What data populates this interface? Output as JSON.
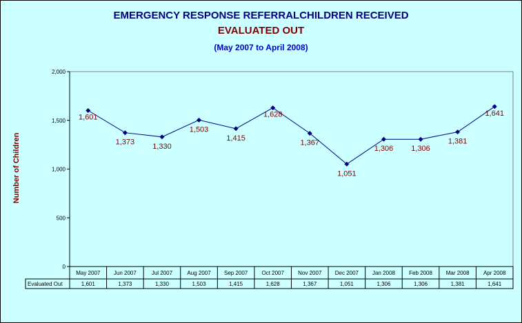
{
  "title_line1": "EMERGENCY RESPONSE REFERRALCHILDREN RECEIVED",
  "title_line2": "EVALUATED OUT",
  "subtitle": "(May 2007 to April 2008)",
  "colors": {
    "background": "#ccffff",
    "line": "#000080",
    "marker": "#000080",
    "data_label": "#800000",
    "title": "#000080",
    "title2": "#800000",
    "subtitle": "#0000cc"
  },
  "chart_data": {
    "type": "line",
    "title": "EMERGENCY RESPONSE REFERRALCHILDREN RECEIVED EVALUATED OUT",
    "subtitle": "(May 2007 to April 2008)",
    "ylabel": "Number of Children",
    "xlabel": "",
    "categories": [
      "May 2007",
      "Jun 2007",
      "Jul 2007",
      "Aug 2007",
      "Sep 2007",
      "Oct 2007",
      "Nov 2007",
      "Dec 2007",
      "Jan 2008",
      "Feb 2008",
      "Mar 2008",
      "Apr 2008"
    ],
    "series": [
      {
        "name": "Evaluated Out",
        "values": [
          1601,
          1373,
          1330,
          1503,
          1415,
          1628,
          1367,
          1051,
          1306,
          1306,
          1381,
          1641
        ]
      }
    ],
    "data_labels": [
      "1,601",
      "1,373",
      "1,330",
      "1,503",
      "1,415",
      "1,628",
      "1,367",
      "1,051",
      "1,306",
      "1,306",
      "1,381",
      "1,641"
    ],
    "ylim": [
      0,
      2000
    ],
    "yticks": [
      0,
      500,
      1000,
      1500,
      2000
    ],
    "ytick_labels": [
      "0",
      "500",
      "1,000",
      "1,500",
      "2,000"
    ],
    "grid": false,
    "legend": "data table below x-axis",
    "data_table": {
      "row_header": "Evaluated Out",
      "values": [
        "1,601",
        "1,373",
        "1,330",
        "1,503",
        "1,415",
        "1,628",
        "1,367",
        "1,051",
        "1,306",
        "1,306",
        "1,381",
        "1,641"
      ]
    }
  }
}
